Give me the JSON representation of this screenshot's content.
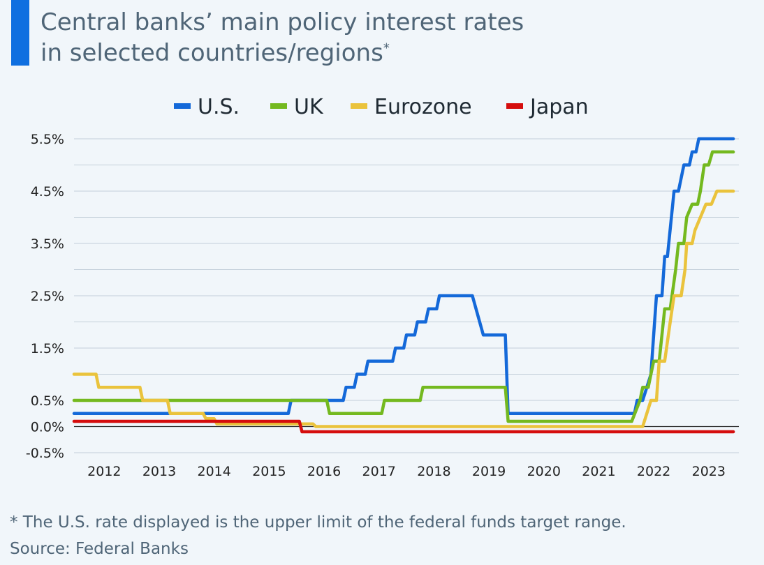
{
  "title": {
    "line1": "Central banks’ main policy interest rates",
    "line2": "in selected countries/regions",
    "asterisk": "*"
  },
  "footer": {
    "note": "* The U.S. rate displayed is the upper limit of the federal funds target range.",
    "source": "Source: Federal Banks"
  },
  "colors": {
    "accent": "#0f6fe0",
    "background": "#f1f6fa",
    "grid": "#c3cfd9",
    "zero_line": "#2b2b2b",
    "text": "#4f6577"
  },
  "chart_data": {
    "type": "line",
    "legend_placement": "top-center",
    "grid": true,
    "x_range": [
      2011.5,
      2023.6
    ],
    "ylim": [
      -0.5,
      5.5
    ],
    "y_ticks": [
      {
        "value": 5.5,
        "label": "5.5%"
      },
      {
        "value": 4.5,
        "label": "4.5%"
      },
      {
        "value": 3.5,
        "label": "3.5%"
      },
      {
        "value": 2.5,
        "label": "2.5%"
      },
      {
        "value": 1.5,
        "label": "1.5%"
      },
      {
        "value": 0.5,
        "label": "0.5%"
      },
      {
        "value": 0.0,
        "label": "0.0%"
      },
      {
        "value": -0.5,
        "label": "-0.5%"
      }
    ],
    "x_ticks": [
      {
        "value": 2012,
        "label": "2012"
      },
      {
        "value": 2013,
        "label": "2013"
      },
      {
        "value": 2014,
        "label": "2014"
      },
      {
        "value": 2015,
        "label": "2015"
      },
      {
        "value": 2016,
        "label": "2016"
      },
      {
        "value": 2017,
        "label": "2017"
      },
      {
        "value": 2018,
        "label": "2018"
      },
      {
        "value": 2019,
        "label": "2019"
      },
      {
        "value": 2020,
        "label": "2020"
      },
      {
        "value": 2021,
        "label": "2021"
      },
      {
        "value": 2022,
        "label": "2022"
      },
      {
        "value": 2023,
        "label": "2023"
      }
    ],
    "series": [
      {
        "name": "U.S.",
        "color": "#1469d9",
        "points": [
          [
            2011.5,
            0.25
          ],
          [
            2015.4,
            0.25
          ],
          [
            2015.45,
            0.5
          ],
          [
            2016.4,
            0.5
          ],
          [
            2016.45,
            0.75
          ],
          [
            2016.6,
            0.75
          ],
          [
            2016.65,
            1.0
          ],
          [
            2016.8,
            1.0
          ],
          [
            2016.85,
            1.25
          ],
          [
            2017.3,
            1.25
          ],
          [
            2017.35,
            1.5
          ],
          [
            2017.5,
            1.5
          ],
          [
            2017.55,
            1.75
          ],
          [
            2017.7,
            1.75
          ],
          [
            2017.75,
            2.0
          ],
          [
            2017.9,
            2.0
          ],
          [
            2017.95,
            2.25
          ],
          [
            2018.1,
            2.25
          ],
          [
            2018.15,
            2.5
          ],
          [
            2018.75,
            2.5
          ],
          [
            2018.95,
            1.75
          ],
          [
            2019.35,
            1.75
          ],
          [
            2019.4,
            0.25
          ],
          [
            2021.7,
            0.25
          ],
          [
            2021.75,
            0.5
          ],
          [
            2021.85,
            0.5
          ],
          [
            2022.0,
            1.0
          ],
          [
            2022.05,
            1.75
          ],
          [
            2022.1,
            2.5
          ],
          [
            2022.2,
            2.5
          ],
          [
            2022.25,
            3.25
          ],
          [
            2022.3,
            3.25
          ],
          [
            2022.42,
            4.5
          ],
          [
            2022.5,
            4.5
          ],
          [
            2022.6,
            5.0
          ],
          [
            2022.7,
            5.0
          ],
          [
            2022.75,
            5.25
          ],
          [
            2022.82,
            5.25
          ],
          [
            2022.87,
            5.5
          ],
          [
            2023.5,
            5.5
          ]
        ]
      },
      {
        "name": "UK",
        "color": "#74b91f",
        "points": [
          [
            2011.5,
            0.5
          ],
          [
            2016.1,
            0.5
          ],
          [
            2016.15,
            0.25
          ],
          [
            2017.1,
            0.25
          ],
          [
            2017.15,
            0.5
          ],
          [
            2017.8,
            0.5
          ],
          [
            2017.85,
            0.75
          ],
          [
            2019.35,
            0.75
          ],
          [
            2019.4,
            0.1
          ],
          [
            2021.65,
            0.1
          ],
          [
            2021.8,
            0.5
          ],
          [
            2021.85,
            0.75
          ],
          [
            2021.95,
            0.75
          ],
          [
            2022.0,
            1.0
          ],
          [
            2022.05,
            1.25
          ],
          [
            2022.15,
            1.25
          ],
          [
            2022.25,
            2.25
          ],
          [
            2022.35,
            2.25
          ],
          [
            2022.45,
            3.0
          ],
          [
            2022.5,
            3.5
          ],
          [
            2022.6,
            3.5
          ],
          [
            2022.65,
            4.0
          ],
          [
            2022.75,
            4.25
          ],
          [
            2022.85,
            4.25
          ],
          [
            2022.9,
            4.5
          ],
          [
            2022.97,
            5.0
          ],
          [
            2023.05,
            5.0
          ],
          [
            2023.12,
            5.25
          ],
          [
            2023.5,
            5.25
          ]
        ]
      },
      {
        "name": "Eurozone",
        "color": "#eac33c",
        "points": [
          [
            2011.5,
            1.0
          ],
          [
            2011.9,
            1.0
          ],
          [
            2011.95,
            0.75
          ],
          [
            2012.7,
            0.75
          ],
          [
            2012.75,
            0.5
          ],
          [
            2013.2,
            0.5
          ],
          [
            2013.25,
            0.25
          ],
          [
            2013.85,
            0.25
          ],
          [
            2013.9,
            0.15
          ],
          [
            2014.05,
            0.15
          ],
          [
            2014.1,
            0.05
          ],
          [
            2015.85,
            0.05
          ],
          [
            2015.9,
            0.0
          ],
          [
            2021.85,
            0.0
          ],
          [
            2022.0,
            0.5
          ],
          [
            2022.1,
            0.5
          ],
          [
            2022.15,
            1.25
          ],
          [
            2022.25,
            1.25
          ],
          [
            2022.35,
            2.0
          ],
          [
            2022.42,
            2.5
          ],
          [
            2022.55,
            2.5
          ],
          [
            2022.62,
            3.0
          ],
          [
            2022.65,
            3.5
          ],
          [
            2022.75,
            3.5
          ],
          [
            2022.8,
            3.75
          ],
          [
            2023.0,
            4.25
          ],
          [
            2023.1,
            4.25
          ],
          [
            2023.2,
            4.5
          ],
          [
            2023.5,
            4.5
          ]
        ]
      },
      {
        "name": "Japan",
        "color": "#d50d0d",
        "points": [
          [
            2011.5,
            0.1
          ],
          [
            2015.6,
            0.1
          ],
          [
            2015.65,
            -0.1
          ],
          [
            2023.5,
            -0.1
          ]
        ]
      }
    ]
  }
}
